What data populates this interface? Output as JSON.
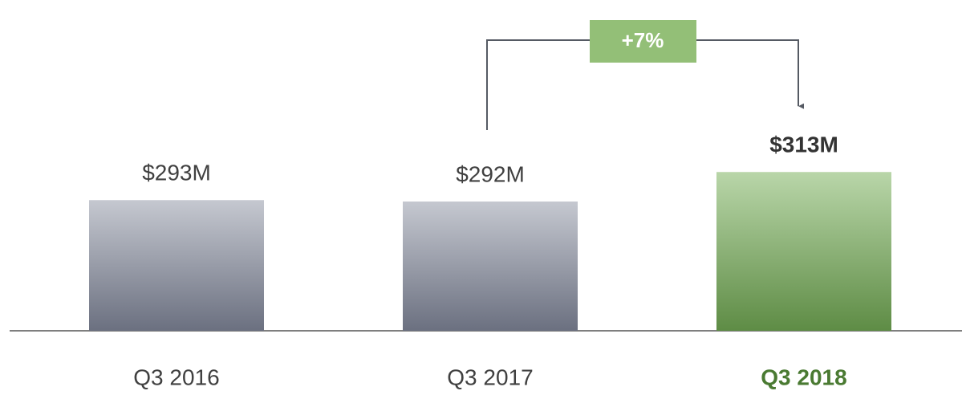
{
  "chart_data": {
    "type": "bar",
    "categories": [
      "Q3 2016",
      "Q3 2017",
      "Q3 2018"
    ],
    "values": [
      293,
      292,
      313
    ],
    "value_labels": [
      "$293M",
      "$292M",
      "$313M"
    ],
    "colors": [
      "#8e929f",
      "#8e929f",
      "#7aa862"
    ],
    "ylim": [
      200,
      420
    ],
    "annotations": [
      {
        "text": "+7%",
        "from": 1,
        "to": 2,
        "color": "#93bf77"
      }
    ]
  }
}
